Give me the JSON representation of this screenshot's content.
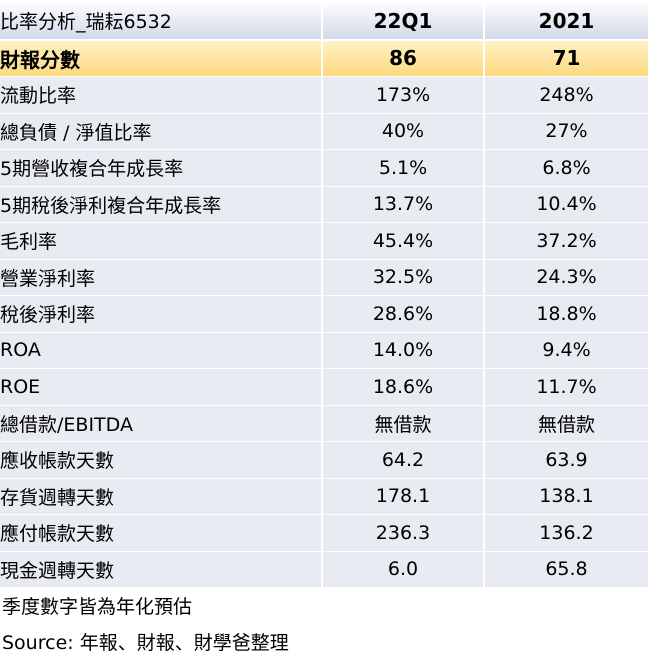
{
  "table": {
    "header": {
      "title": "比率分析_瑞耘6532",
      "col1": "22Q1",
      "col2": "2021"
    },
    "score": {
      "label": "財報分數",
      "v1": "86",
      "v2": "71"
    },
    "rows": [
      {
        "label": "流動比率",
        "v1": "173%",
        "v2": "248%"
      },
      {
        "label": "總負債 / 淨值比率",
        "v1": "40%",
        "v2": "27%"
      },
      {
        "label": "5期營收複合年成長率",
        "v1": "5.1%",
        "v2": "6.8%"
      },
      {
        "label": "5期稅後淨利複合年成長率",
        "v1": "13.7%",
        "v2": "10.4%"
      },
      {
        "label": "毛利率",
        "v1": "45.4%",
        "v2": "37.2%"
      },
      {
        "label": "營業淨利率",
        "v1": "32.5%",
        "v2": "24.3%"
      },
      {
        "label": "稅後淨利率",
        "v1": "28.6%",
        "v2": "18.8%"
      },
      {
        "label": "ROA",
        "v1": "14.0%",
        "v2": "9.4%"
      },
      {
        "label": "ROE",
        "v1": "18.6%",
        "v2": "11.7%"
      },
      {
        "label": "總借款/EBITDA",
        "v1": "無借款",
        "v2": "無借款"
      },
      {
        "label": "應收帳款天數",
        "v1": "64.2",
        "v2": "63.9"
      },
      {
        "label": "存貨週轉天數",
        "v1": "178.1",
        "v2": "138.1"
      },
      {
        "label": "應付帳款天數",
        "v1": "236.3",
        "v2": "136.2"
      },
      {
        "label": "現金週轉天數",
        "v1": "6.0",
        "v2": "65.8"
      }
    ]
  },
  "notes": {
    "note1": "季度數字皆為年化預估",
    "note2": "Source: 年報、財報、財學爸整理"
  }
}
